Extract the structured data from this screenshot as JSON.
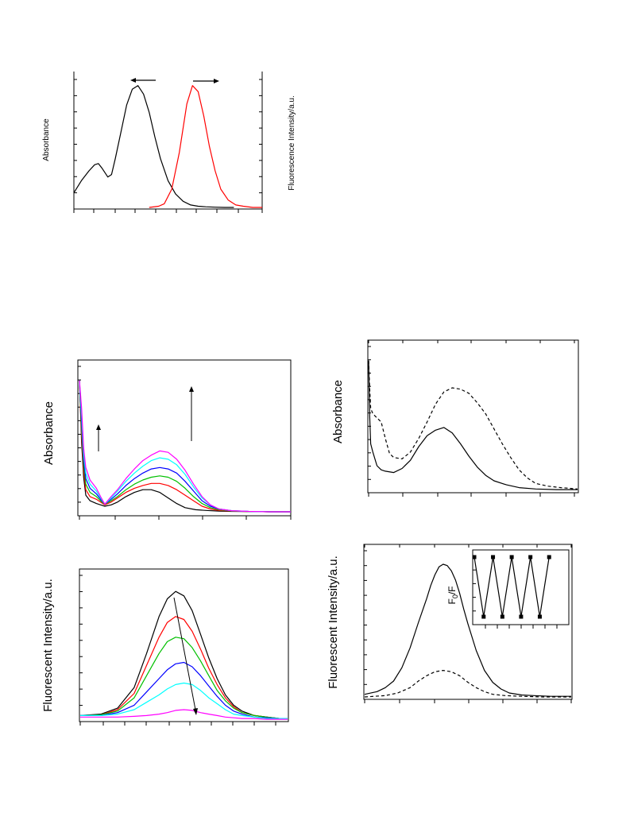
{
  "colors": {
    "axis": "#000000",
    "black": "#000000",
    "red": "#ff0000",
    "green": "#00c000",
    "blue": "#0000ff",
    "cyan": "#00ffff",
    "magenta": "#ff00ff"
  },
  "chart_data": [
    {
      "type": "line",
      "title": "",
      "ylabel": "Absorbance",
      "y2label": "Fluorescence Intensity/a.u.",
      "xlim": [
        0,
        100
      ],
      "ylim": [
        0,
        1.05
      ],
      "annotations": [
        "left-arrow over absorbance peak",
        "right-arrow over emission peak"
      ],
      "series": [
        {
          "color": "black",
          "x": [
            0,
            4,
            8,
            11,
            13,
            15,
            18,
            20,
            22,
            25,
            28,
            31,
            34,
            37,
            40,
            43,
            46,
            50,
            54,
            58,
            62,
            66,
            70,
            75,
            80,
            85
          ],
          "y": [
            0.12,
            0.22,
            0.3,
            0.35,
            0.36,
            0.32,
            0.25,
            0.27,
            0.4,
            0.62,
            0.84,
            0.97,
            1.0,
            0.93,
            0.78,
            0.58,
            0.4,
            0.22,
            0.11,
            0.05,
            0.02,
            0.01,
            0.005,
            0.002,
            0.0,
            0.0
          ]
        },
        {
          "color": "red",
          "x": [
            40,
            45,
            48,
            52,
            56,
            60,
            63,
            66,
            69,
            72,
            75,
            78,
            82,
            86,
            90,
            95,
            100
          ],
          "y": [
            0.0,
            0.01,
            0.03,
            0.15,
            0.45,
            0.85,
            1.0,
            0.95,
            0.75,
            0.5,
            0.3,
            0.15,
            0.06,
            0.02,
            0.01,
            0.0,
            0.0
          ]
        }
      ]
    },
    {
      "type": "line",
      "title": "",
      "ylabel": "Absorbance",
      "xlim": [
        0,
        100
      ],
      "ylim": [
        0,
        1.0
      ],
      "annotations": [
        "upward arrow near 8",
        "upward arrow near 52"
      ],
      "series": [
        {
          "color": "black",
          "x": [
            0,
            1,
            2,
            3,
            5,
            8,
            10,
            12,
            15,
            18,
            22,
            26,
            30,
            34,
            38,
            42,
            46,
            50,
            55,
            60,
            66,
            72,
            80,
            90,
            100
          ],
          "y": [
            0.95,
            0.5,
            0.25,
            0.12,
            0.08,
            0.06,
            0.05,
            0.04,
            0.05,
            0.07,
            0.11,
            0.14,
            0.16,
            0.16,
            0.14,
            0.1,
            0.06,
            0.03,
            0.015,
            0.01,
            0.005,
            0.003,
            0.002,
            0.0,
            0.0
          ]
        },
        {
          "color": "red",
          "x": [
            0,
            1,
            2,
            3,
            5,
            8,
            10,
            12,
            15,
            18,
            22,
            26,
            30,
            34,
            38,
            42,
            46,
            50,
            54,
            58,
            62,
            66,
            72,
            80,
            90,
            100
          ],
          "y": [
            0.95,
            0.55,
            0.3,
            0.16,
            0.11,
            0.09,
            0.07,
            0.05,
            0.07,
            0.1,
            0.14,
            0.17,
            0.19,
            0.205,
            0.205,
            0.19,
            0.16,
            0.12,
            0.08,
            0.04,
            0.02,
            0.01,
            0.005,
            0.002,
            0.0,
            0.0
          ]
        },
        {
          "color": "green",
          "x": [
            0,
            1,
            2,
            3,
            5,
            8,
            10,
            12,
            15,
            18,
            22,
            26,
            30,
            34,
            38,
            42,
            46,
            50,
            54,
            58,
            62,
            66,
            72,
            80,
            90,
            100
          ],
          "y": [
            0.95,
            0.6,
            0.34,
            0.2,
            0.14,
            0.11,
            0.08,
            0.055,
            0.08,
            0.11,
            0.16,
            0.2,
            0.23,
            0.25,
            0.26,
            0.25,
            0.22,
            0.17,
            0.11,
            0.06,
            0.03,
            0.015,
            0.006,
            0.002,
            0.0,
            0.0
          ]
        },
        {
          "color": "blue",
          "x": [
            0,
            1,
            2,
            3,
            5,
            8,
            10,
            12,
            15,
            18,
            22,
            26,
            30,
            34,
            38,
            42,
            46,
            50,
            54,
            58,
            62,
            66,
            72,
            80,
            90,
            100
          ],
          "y": [
            0.95,
            0.65,
            0.38,
            0.24,
            0.17,
            0.13,
            0.09,
            0.055,
            0.09,
            0.13,
            0.19,
            0.24,
            0.28,
            0.31,
            0.32,
            0.31,
            0.28,
            0.22,
            0.15,
            0.08,
            0.04,
            0.02,
            0.008,
            0.003,
            0.0,
            0.0
          ]
        },
        {
          "color": "cyan",
          "x": [
            0,
            1,
            2,
            3,
            5,
            8,
            10,
            12,
            15,
            18,
            22,
            26,
            30,
            34,
            38,
            42,
            46,
            50,
            54,
            58,
            62,
            66,
            72,
            80,
            90,
            100
          ],
          "y": [
            0.95,
            0.7,
            0.42,
            0.28,
            0.2,
            0.15,
            0.1,
            0.055,
            0.1,
            0.15,
            0.22,
            0.28,
            0.33,
            0.37,
            0.39,
            0.38,
            0.34,
            0.27,
            0.18,
            0.1,
            0.05,
            0.02,
            0.008,
            0.003,
            0.0,
            0.0
          ]
        },
        {
          "color": "magenta",
          "x": [
            0,
            1,
            2,
            3,
            5,
            8,
            10,
            12,
            15,
            18,
            22,
            26,
            30,
            34,
            38,
            42,
            46,
            50,
            54,
            58,
            62,
            66,
            72,
            80,
            90,
            100
          ],
          "y": [
            0.95,
            0.75,
            0.46,
            0.32,
            0.23,
            0.17,
            0.11,
            0.055,
            0.11,
            0.16,
            0.24,
            0.31,
            0.37,
            0.41,
            0.44,
            0.43,
            0.38,
            0.3,
            0.2,
            0.11,
            0.05,
            0.02,
            0.008,
            0.003,
            0.0,
            0.0
          ]
        }
      ]
    },
    {
      "type": "line",
      "title": "",
      "ylabel": "Fluorescent Intensity/a.u.",
      "xlim": [
        0,
        100
      ],
      "ylim": [
        0,
        1.0
      ],
      "annotations": [
        "downward diagonal arrow through peaks"
      ],
      "series": [
        {
          "color": "black",
          "x": [
            0,
            10,
            18,
            26,
            32,
            38,
            42,
            46,
            50,
            54,
            58,
            62,
            66,
            70,
            74,
            78,
            84,
            90,
            96,
            100
          ],
          "y": [
            0.03,
            0.04,
            0.08,
            0.22,
            0.45,
            0.7,
            0.82,
            0.87,
            0.84,
            0.74,
            0.58,
            0.42,
            0.28,
            0.17,
            0.1,
            0.06,
            0.03,
            0.02,
            0.01,
            0.01
          ]
        },
        {
          "color": "red",
          "x": [
            0,
            10,
            18,
            26,
            32,
            38,
            42,
            46,
            50,
            54,
            58,
            62,
            66,
            70,
            74,
            78,
            84,
            90,
            96,
            100
          ],
          "y": [
            0.03,
            0.035,
            0.07,
            0.18,
            0.37,
            0.56,
            0.66,
            0.7,
            0.68,
            0.6,
            0.48,
            0.35,
            0.24,
            0.15,
            0.09,
            0.05,
            0.03,
            0.02,
            0.01,
            0.01
          ]
        },
        {
          "color": "green",
          "x": [
            0,
            10,
            18,
            26,
            32,
            38,
            42,
            46,
            50,
            54,
            58,
            62,
            66,
            70,
            74,
            78,
            84,
            90,
            96,
            100
          ],
          "y": [
            0.03,
            0.035,
            0.06,
            0.15,
            0.3,
            0.45,
            0.53,
            0.56,
            0.55,
            0.49,
            0.4,
            0.3,
            0.2,
            0.13,
            0.08,
            0.05,
            0.03,
            0.02,
            0.01,
            0.01
          ]
        },
        {
          "color": "blue",
          "x": [
            0,
            10,
            18,
            26,
            32,
            38,
            42,
            46,
            50,
            54,
            58,
            62,
            66,
            70,
            74,
            78,
            84,
            90,
            96,
            100
          ],
          "y": [
            0.03,
            0.03,
            0.05,
            0.1,
            0.19,
            0.28,
            0.34,
            0.38,
            0.39,
            0.36,
            0.3,
            0.23,
            0.16,
            0.1,
            0.06,
            0.04,
            0.02,
            0.015,
            0.01,
            0.01
          ]
        },
        {
          "color": "cyan",
          "x": [
            0,
            10,
            18,
            26,
            32,
            38,
            42,
            46,
            50,
            54,
            58,
            62,
            66,
            70,
            74,
            78,
            84,
            90,
            96,
            100
          ],
          "y": [
            0.03,
            0.03,
            0.04,
            0.07,
            0.12,
            0.17,
            0.21,
            0.24,
            0.25,
            0.24,
            0.2,
            0.15,
            0.11,
            0.07,
            0.04,
            0.03,
            0.02,
            0.01,
            0.01,
            0.01
          ]
        },
        {
          "color": "magenta",
          "x": [
            0,
            10,
            18,
            26,
            32,
            38,
            42,
            46,
            50,
            54,
            58,
            62,
            66,
            70,
            74,
            78,
            84,
            90,
            96,
            100
          ],
          "y": [
            0.02,
            0.02,
            0.02,
            0.025,
            0.03,
            0.04,
            0.05,
            0.065,
            0.07,
            0.065,
            0.05,
            0.04,
            0.03,
            0.02,
            0.015,
            0.01,
            0.01,
            0.005,
            0.005,
            0.005
          ]
        }
      ]
    },
    {
      "type": "line",
      "title": "",
      "ylabel": "Absorbance",
      "xlim": [
        0,
        100
      ],
      "ylim": [
        0,
        1.0
      ],
      "series": [
        {
          "style": "solid",
          "x": [
            0,
            0.5,
            1,
            2,
            4,
            6,
            8,
            12,
            16,
            20,
            24,
            28,
            32,
            36,
            40,
            44,
            48,
            52,
            56,
            60,
            66,
            72,
            80,
            90,
            100
          ],
          "y": [
            0.95,
            0.55,
            0.34,
            0.28,
            0.18,
            0.15,
            0.14,
            0.13,
            0.16,
            0.22,
            0.32,
            0.4,
            0.44,
            0.46,
            0.42,
            0.34,
            0.25,
            0.17,
            0.11,
            0.07,
            0.04,
            0.02,
            0.01,
            0.005,
            0.005
          ]
        },
        {
          "style": "dashed",
          "x": [
            0,
            0.5,
            1,
            2,
            4,
            6,
            8,
            10,
            12,
            16,
            20,
            24,
            28,
            32,
            36,
            40,
            44,
            48,
            52,
            56,
            60,
            64,
            68,
            72,
            76,
            80,
            86,
            92,
            100
          ],
          "y": [
            0.95,
            0.75,
            0.6,
            0.56,
            0.53,
            0.5,
            0.38,
            0.27,
            0.24,
            0.23,
            0.28,
            0.38,
            0.5,
            0.63,
            0.72,
            0.75,
            0.74,
            0.71,
            0.64,
            0.56,
            0.45,
            0.34,
            0.24,
            0.15,
            0.09,
            0.05,
            0.03,
            0.02,
            0.01
          ]
        }
      ]
    },
    {
      "type": "line",
      "title": "",
      "ylabel": "Fluorescent Intensity/a.u.",
      "xlim": [
        0,
        100
      ],
      "ylim": [
        0,
        1.0
      ],
      "series": [
        {
          "style": "solid",
          "x": [
            0,
            6,
            10,
            14,
            18,
            22,
            26,
            30,
            32,
            34,
            36,
            38,
            40,
            42,
            44,
            46,
            48,
            50,
            54,
            58,
            62,
            66,
            70,
            76,
            82,
            90,
            100
          ],
          "y": [
            0.02,
            0.04,
            0.07,
            0.12,
            0.22,
            0.37,
            0.56,
            0.74,
            0.84,
            0.92,
            0.98,
            1.0,
            0.99,
            0.95,
            0.88,
            0.78,
            0.66,
            0.55,
            0.35,
            0.2,
            0.11,
            0.06,
            0.03,
            0.015,
            0.01,
            0.005,
            0.005
          ]
        },
        {
          "style": "dashed",
          "x": [
            0,
            10,
            16,
            22,
            26,
            30,
            34,
            38,
            42,
            46,
            50,
            54,
            58,
            62,
            68,
            76,
            86,
            100
          ],
          "y": [
            0.0,
            0.01,
            0.03,
            0.07,
            0.12,
            0.16,
            0.19,
            0.2,
            0.19,
            0.16,
            0.11,
            0.07,
            0.04,
            0.02,
            0.01,
            0.005,
            0.0,
            0.0
          ]
        }
      ]
    },
    {
      "type": "line",
      "title": "",
      "ylabel": "F0/F",
      "ylabel_main": "F",
      "ylabel_sub": "0",
      "ylabel_tail": "/F",
      "xlim": [
        0,
        9
      ],
      "ylim": [
        0,
        1
      ],
      "series": [
        {
          "style": "markers-line",
          "x": [
            0,
            1,
            2,
            3,
            4,
            5,
            6,
            7,
            8
          ],
          "y": [
            1,
            0,
            1,
            0,
            1,
            0,
            1,
            0,
            1
          ]
        }
      ]
    }
  ]
}
